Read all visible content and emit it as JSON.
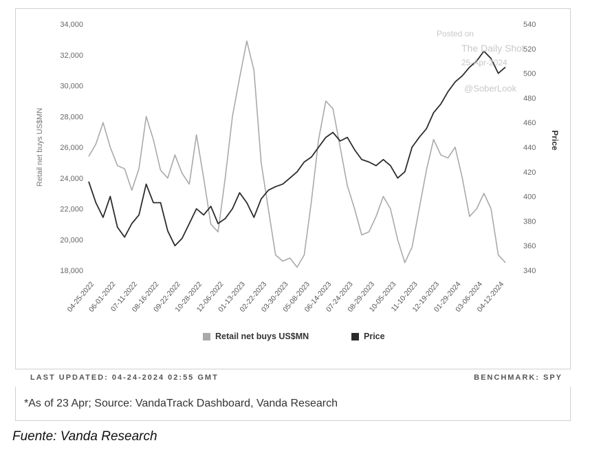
{
  "chart_data": {
    "type": "line",
    "ylabel_left": "Retail net buys US$MN",
    "ylabel_right": "Price",
    "ylim_left": [
      18000,
      34000
    ],
    "ylim_right": [
      340,
      540
    ],
    "yticks_left": [
      18000,
      20000,
      22000,
      24000,
      26000,
      28000,
      30000,
      32000,
      34000
    ],
    "yticks_left_labels": [
      "18,000",
      "20,000",
      "22,000",
      "24,000",
      "26,000",
      "28,000",
      "30,000",
      "32,000",
      "34,000"
    ],
    "yticks_right": [
      340,
      360,
      380,
      400,
      420,
      440,
      460,
      480,
      500,
      520,
      540
    ],
    "x_tick_labels": [
      "04-25-2022",
      "06-01-2022",
      "07-11-2022",
      "08-16-2022",
      "09-22-2022",
      "10-28-2022",
      "12-06-2022",
      "01-13-2023",
      "02-22-2023",
      "03-30-2023",
      "05-08-2023",
      "06-14-2023",
      "07-24-2023",
      "08-29-2023",
      "10-05-2023",
      "11-10-2023",
      "12-19-2023",
      "01-29-2024",
      "03-06-2024",
      "04-12-2024"
    ],
    "legend_position": "bottom",
    "series": [
      {
        "name": "Retail net buys US$MN",
        "axis": "left",
        "color": "#a9a9a9",
        "points": [
          [
            0,
            25400
          ],
          [
            0.5,
            26200
          ],
          [
            1,
            27600
          ],
          [
            1.5,
            26000
          ],
          [
            2,
            24800
          ],
          [
            2.5,
            24600
          ],
          [
            3,
            23200
          ],
          [
            3.5,
            24600
          ],
          [
            4,
            28000
          ],
          [
            4.5,
            26500
          ],
          [
            5,
            24500
          ],
          [
            5.5,
            24000
          ],
          [
            6,
            25500
          ],
          [
            6.5,
            24300
          ],
          [
            7,
            23600
          ],
          [
            7.5,
            26800
          ],
          [
            8,
            24000
          ],
          [
            8.5,
            21000
          ],
          [
            9,
            20500
          ],
          [
            9.5,
            24000
          ],
          [
            10,
            28000
          ],
          [
            10.5,
            30500
          ],
          [
            11,
            32900
          ],
          [
            11.5,
            31000
          ],
          [
            12,
            25000
          ],
          [
            12.5,
            22000
          ],
          [
            13,
            19000
          ],
          [
            13.5,
            18600
          ],
          [
            14,
            18800
          ],
          [
            14.5,
            18200
          ],
          [
            15,
            19000
          ],
          [
            15.5,
            22500
          ],
          [
            16,
            26500
          ],
          [
            16.5,
            29000
          ],
          [
            17,
            28500
          ],
          [
            17.5,
            26000
          ],
          [
            18,
            23500
          ],
          [
            18.5,
            22000
          ],
          [
            19,
            20300
          ],
          [
            19.5,
            20500
          ],
          [
            20,
            21500
          ],
          [
            20.5,
            22800
          ],
          [
            21,
            22000
          ],
          [
            21.5,
            20000
          ],
          [
            22,
            18500
          ],
          [
            22.5,
            19500
          ],
          [
            23,
            22000
          ],
          [
            23.5,
            24500
          ],
          [
            24,
            26500
          ],
          [
            24.5,
            25500
          ],
          [
            25,
            25300
          ],
          [
            25.5,
            26000
          ],
          [
            26,
            24000
          ],
          [
            26.5,
            21500
          ],
          [
            27,
            22000
          ],
          [
            27.5,
            23000
          ],
          [
            28,
            22000
          ],
          [
            28.5,
            19000
          ],
          [
            29,
            18500
          ]
        ]
      },
      {
        "name": "Price",
        "axis": "right",
        "color": "#2b2b2b",
        "points": [
          [
            0,
            412
          ],
          [
            0.5,
            395
          ],
          [
            1,
            383
          ],
          [
            1.5,
            400
          ],
          [
            2,
            375
          ],
          [
            2.5,
            367
          ],
          [
            3,
            378
          ],
          [
            3.5,
            385
          ],
          [
            4,
            410
          ],
          [
            4.5,
            395
          ],
          [
            5,
            395
          ],
          [
            5.5,
            372
          ],
          [
            6,
            360
          ],
          [
            6.5,
            366
          ],
          [
            7,
            378
          ],
          [
            7.5,
            390
          ],
          [
            8,
            385
          ],
          [
            8.5,
            392
          ],
          [
            9,
            378
          ],
          [
            9.5,
            382
          ],
          [
            10,
            390
          ],
          [
            10.5,
            403
          ],
          [
            11,
            395
          ],
          [
            11.5,
            383
          ],
          [
            12,
            398
          ],
          [
            12.5,
            405
          ],
          [
            13,
            408
          ],
          [
            13.5,
            410
          ],
          [
            14,
            415
          ],
          [
            14.5,
            420
          ],
          [
            15,
            428
          ],
          [
            15.5,
            432
          ],
          [
            16,
            440
          ],
          [
            16.5,
            448
          ],
          [
            17,
            452
          ],
          [
            17.5,
            445
          ],
          [
            18,
            448
          ],
          [
            18.5,
            438
          ],
          [
            19,
            430
          ],
          [
            19.5,
            428
          ],
          [
            20,
            425
          ],
          [
            20.5,
            430
          ],
          [
            21,
            425
          ],
          [
            21.5,
            415
          ],
          [
            22,
            420
          ],
          [
            22.5,
            440
          ],
          [
            23,
            448
          ],
          [
            23.5,
            455
          ],
          [
            24,
            468
          ],
          [
            24.5,
            475
          ],
          [
            25,
            485
          ],
          [
            25.5,
            493
          ],
          [
            26,
            498
          ],
          [
            26.5,
            505
          ],
          [
            27,
            510
          ],
          [
            27.5,
            518
          ],
          [
            28,
            512
          ],
          [
            28.5,
            500
          ],
          [
            29,
            505
          ]
        ]
      }
    ]
  },
  "watermark": {
    "posted_on": "Posted on",
    "site": "The Daily Shot",
    "date": "25-Apr-2024",
    "handle": "@SoberLook"
  },
  "footer": {
    "last_updated": "LAST UPDATED: 04-24-2024 02:55 GMT",
    "benchmark": "BENCHMARK: SPY",
    "source_note": "*As of 23 Apr; Source: VandaTrack Dashboard, Vanda Research"
  },
  "caption": "Fuente: Vanda Research"
}
